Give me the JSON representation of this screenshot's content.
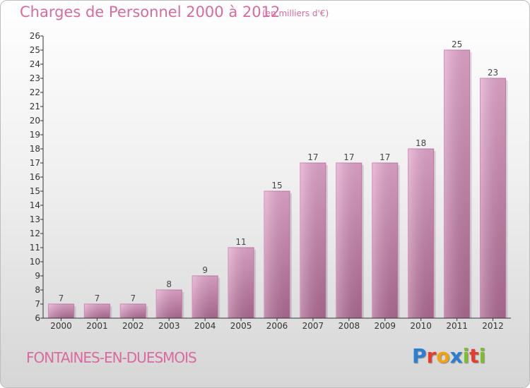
{
  "chart_data": {
    "type": "bar",
    "title": "Charges de Personnel 2000 à 2012",
    "subtitle": "(en milliers d'€)",
    "categories": [
      "2000",
      "2001",
      "2002",
      "2003",
      "2004",
      "2005",
      "2006",
      "2007",
      "2008",
      "2009",
      "2010",
      "2011",
      "2012"
    ],
    "values": [
      7,
      7,
      7,
      8,
      9,
      11,
      15,
      17,
      17,
      17,
      18,
      25,
      23
    ],
    "ylim": [
      6,
      26
    ],
    "yticks": [
      6,
      7,
      8,
      9,
      10,
      11,
      12,
      13,
      14,
      15,
      16,
      17,
      18,
      19,
      20,
      21,
      22,
      23,
      24,
      25,
      26
    ],
    "xlabel": "",
    "ylabel": "",
    "grid": false,
    "bar_color": "#d98fbb"
  },
  "footer": {
    "commune": "FONTAINES-EN-DUESMOIS",
    "logo_letters": [
      "P",
      "r",
      "o",
      "x",
      "i",
      "t",
      "i"
    ],
    "logo_colors": [
      "#2a7fd4",
      "#e63d2e",
      "#f2a20f",
      "#2a7fd4",
      "#7bbf2a",
      "#e63d2e",
      "#7bbf2a"
    ]
  }
}
